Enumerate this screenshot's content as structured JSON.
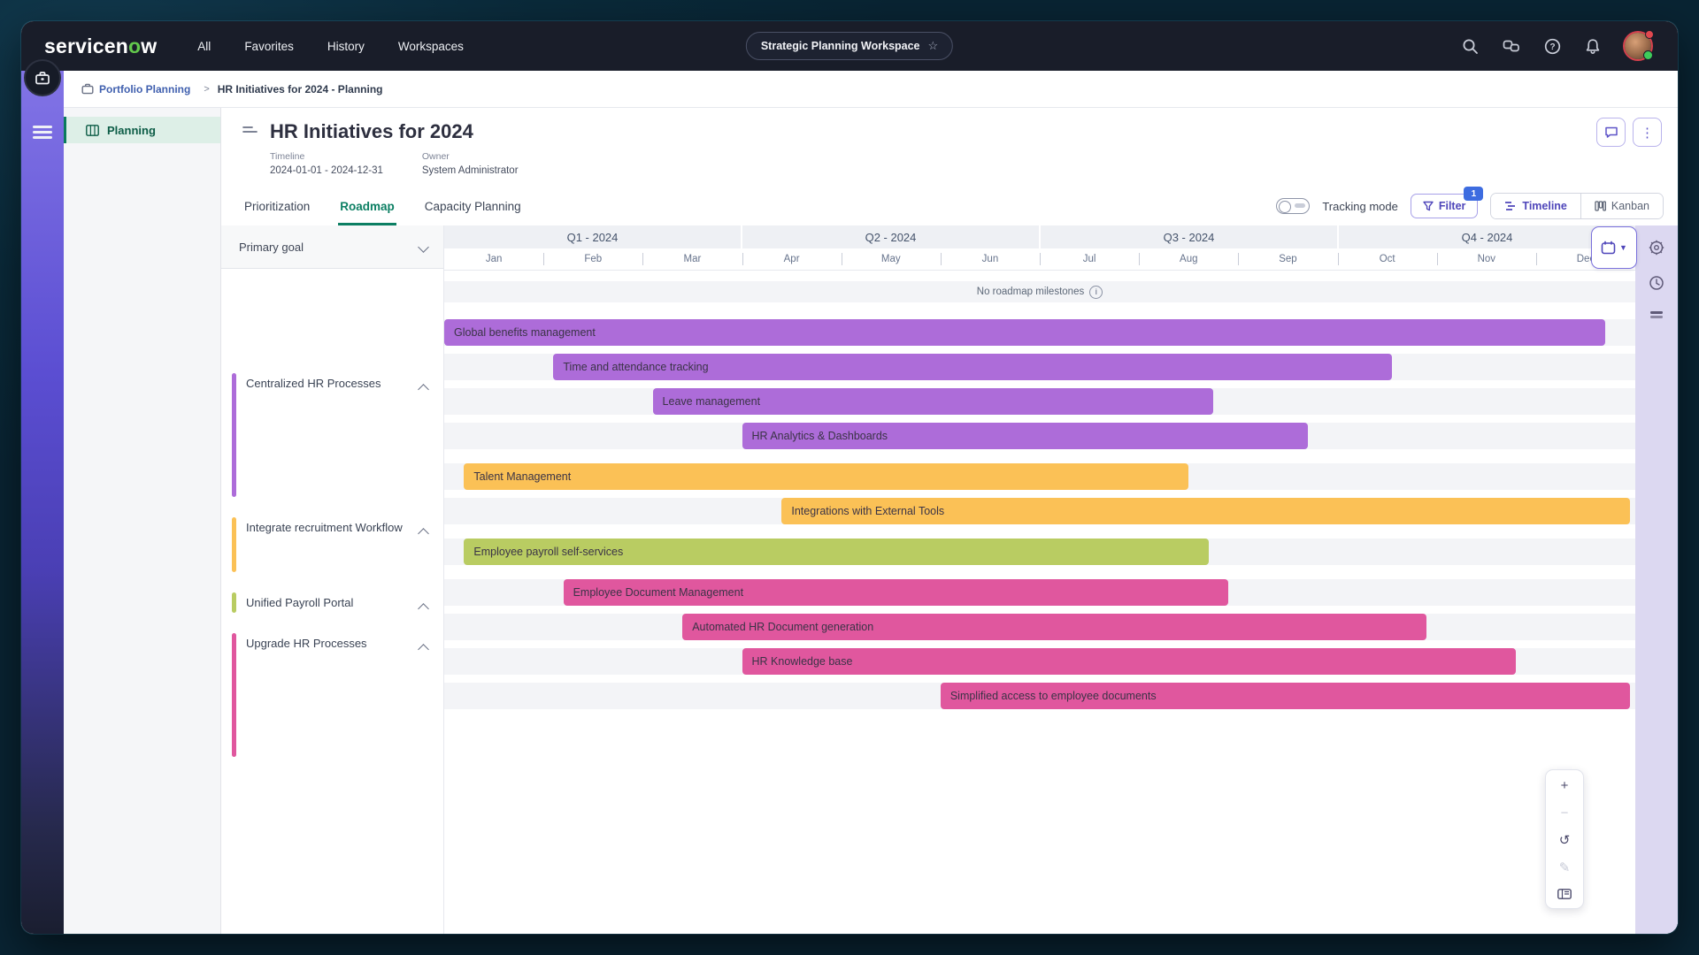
{
  "top_nav": {
    "logo_text_1": "servicen",
    "logo_text_o": "o",
    "logo_text_2": "w",
    "items": [
      "All",
      "Favorites",
      "History",
      "Workspaces"
    ],
    "workspace_pill": "Strategic Planning Workspace",
    "pill_star_glyph": "☆",
    "right_icons": [
      "search-icon",
      "conversations-icon",
      "help-icon",
      "notifications-bell-icon",
      "user-avatar"
    ]
  },
  "breadcrumb": {
    "items": [
      "Portfolio Planning",
      "HR Initiatives for 2024 - Planning"
    ],
    "separator": ">"
  },
  "sidebar": {
    "items": [
      {
        "label": "Planning"
      }
    ]
  },
  "page_header": {
    "title": "HR Initiatives for 2024",
    "timeline_label": "Timeline",
    "timeline_value": "2024-01-01 - 2024-12-31",
    "owner_label": "Owner",
    "owner_value": "System Administrator",
    "kebab_glyph": "⋮"
  },
  "tabs": {
    "items": [
      {
        "label": "Prioritization",
        "active": false
      },
      {
        "label": "Roadmap",
        "active": true
      },
      {
        "label": "Capacity Planning",
        "active": false
      }
    ]
  },
  "view_controls": {
    "tracking_mode_label": "Tracking mode",
    "filter_label": "Filter",
    "filter_badge": "1",
    "segments": [
      {
        "label": "Timeline",
        "active": true
      },
      {
        "label": "Kanban",
        "active": false
      }
    ]
  },
  "roadmap_panel": {
    "lens_label": "Primary goal"
  },
  "zoom_toolbar": {
    "zoom_in_glyph": "+",
    "zoom_out_glyph": "−",
    "reset_glyph": "↺",
    "edit_glyph": "✎"
  },
  "theme": {
    "purple": "#ad6cd9",
    "orange": "#fbc156",
    "lime": "#b9cc62",
    "pink": "#e0579e",
    "accent_purple": "#4f46ba",
    "accent_green": "#0c7f63",
    "badge_blue": "#3d6ce0"
  },
  "chart_data": {
    "type": "gantt",
    "title": "HR Initiatives for 2024",
    "no_milestones_label": "No roadmap milestones",
    "time_axis": {
      "quarters": [
        "Q1 - 2024",
        "Q2 - 2024",
        "Q3 - 2024",
        "Q4 - 2024"
      ],
      "months": [
        "Jan",
        "Feb",
        "Mar",
        "Apr",
        "May",
        "Jun",
        "Jul",
        "Aug",
        "Sep",
        "Oct",
        "Nov",
        "Dec"
      ],
      "range_months": [
        0,
        12
      ],
      "range_label": "2024-01-01 - 2024-12-31"
    },
    "groups": [
      {
        "goal": "Centralized HR Processes",
        "color": "#ad6cd9",
        "items": [
          {
            "label": "Global benefits management",
            "start_month": 0.0,
            "end_month": 11.7
          },
          {
            "label": "Time and attendance tracking",
            "start_month": 1.1,
            "end_month": 9.55
          },
          {
            "label": "Leave management",
            "start_month": 2.1,
            "end_month": 7.75
          },
          {
            "label": "HR Analytics & Dashboards",
            "start_month": 3.0,
            "end_month": 8.7
          }
        ]
      },
      {
        "goal": "Integrate recruitment Workflow",
        "color": "#fbc156",
        "items": [
          {
            "label": "Talent Management",
            "start_month": 0.2,
            "end_month": 7.5
          },
          {
            "label": "Integrations with External Tools",
            "start_month": 3.4,
            "end_month": 11.95
          }
        ]
      },
      {
        "goal": "Unified Payroll Portal",
        "color": "#b9cc62",
        "items": [
          {
            "label": "Employee payroll self-services",
            "start_month": 0.2,
            "end_month": 7.7
          }
        ]
      },
      {
        "goal": "Upgrade HR Processes",
        "color": "#e0579e",
        "items": [
          {
            "label": "Employee Document Management",
            "start_month": 1.2,
            "end_month": 7.9
          },
          {
            "label": "Automated HR Document generation",
            "start_month": 2.4,
            "end_month": 9.9
          },
          {
            "label": "HR Knowledge base",
            "start_month": 3.0,
            "end_month": 10.8
          },
          {
            "label": "Simplified access to employee documents",
            "start_month": 5.0,
            "end_month": 11.95
          }
        ]
      }
    ]
  }
}
